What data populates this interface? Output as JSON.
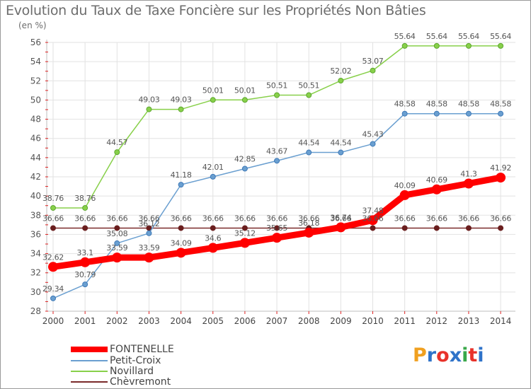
{
  "title": "Evolution du Taux de Taxe Foncière sur les Propriétés Non Bâties",
  "unit_label": "(en %)",
  "logo": {
    "text": "Proxiti",
    "colors": [
      "#f0a020",
      "#2f73c9",
      "#e8322a",
      "#2f73c9",
      "#3aa84a",
      "#e8322a",
      "#2f73c9"
    ]
  },
  "chart_data": {
    "type": "line",
    "categories": [
      "2000",
      "2001",
      "2002",
      "2003",
      "2004",
      "2005",
      "2006",
      "2007",
      "2008",
      "2009",
      "2010",
      "2011",
      "2012",
      "2013",
      "2014"
    ],
    "ylim": [
      28,
      56
    ],
    "yticks": [
      28,
      30,
      32,
      34,
      36,
      38,
      40,
      42,
      44,
      46,
      48,
      50,
      52,
      54,
      56
    ],
    "grid": true,
    "legend_position": "bottom-left",
    "series": [
      {
        "name": "Chèvremont",
        "color": "#7a2a2a",
        "width": 1.5,
        "values": [
          36.66,
          36.66,
          36.66,
          36.66,
          36.66,
          36.66,
          36.66,
          36.66,
          36.66,
          36.66,
          36.66,
          36.66,
          36.66,
          36.66,
          36.66
        ],
        "labels": [
          "36.66",
          "36.66",
          "36.66",
          "36.66",
          "36.66",
          "36.66",
          "36.66",
          "36.66",
          "36.66",
          "36.66",
          "36.66",
          "36.66",
          "36.66",
          "36.66",
          "36.66"
        ]
      },
      {
        "name": "Novillard",
        "color": "#88d04a",
        "width": 1.5,
        "values": [
          38.76,
          38.76,
          44.57,
          49.03,
          49.03,
          50.01,
          50.01,
          50.51,
          50.51,
          52.02,
          53.07,
          55.64,
          55.64,
          55.64,
          55.64
        ],
        "labels": [
          "38.76",
          "38.76",
          "44.57",
          "49.03",
          "49.03",
          "50.01",
          "50.01",
          "50.51",
          "50.51",
          "52.02",
          "53.07",
          "55.64",
          "55.64",
          "55.64",
          "55.64"
        ]
      },
      {
        "name": "Petit-Croix",
        "color": "#6a9fd0",
        "width": 1.5,
        "values": [
          29.34,
          30.79,
          35.08,
          36.12,
          41.18,
          42.01,
          42.85,
          43.67,
          44.54,
          44.54,
          45.43,
          48.58,
          48.58,
          48.58,
          48.58
        ],
        "labels": [
          "29.34",
          "30.79",
          "35.08",
          "36.12",
          "41.18",
          "42.01",
          "42.85",
          "43.67",
          "44.54",
          "44.54",
          "45.43",
          "48.58",
          "48.58",
          "48.58",
          "48.58"
        ]
      },
      {
        "name": "FONTENELLE",
        "color": "#ff0000",
        "width": 9,
        "values": [
          32.62,
          33.1,
          33.59,
          33.59,
          34.09,
          34.6,
          35.12,
          35.65,
          36.18,
          36.74,
          37.48,
          40.09,
          40.69,
          41.3,
          41.92
        ],
        "labels": [
          "32.62",
          "33.1",
          "33.59",
          "33.59",
          "34.09",
          "34.6",
          "35.12",
          "35.65",
          "36.18",
          "36.74",
          "37.48",
          "40.09",
          "40.69",
          "41.3",
          "41.92"
        ]
      }
    ],
    "legend": [
      "FONTENELLE",
      "Petit-Croix",
      "Novillard",
      "Chèvremont"
    ]
  }
}
